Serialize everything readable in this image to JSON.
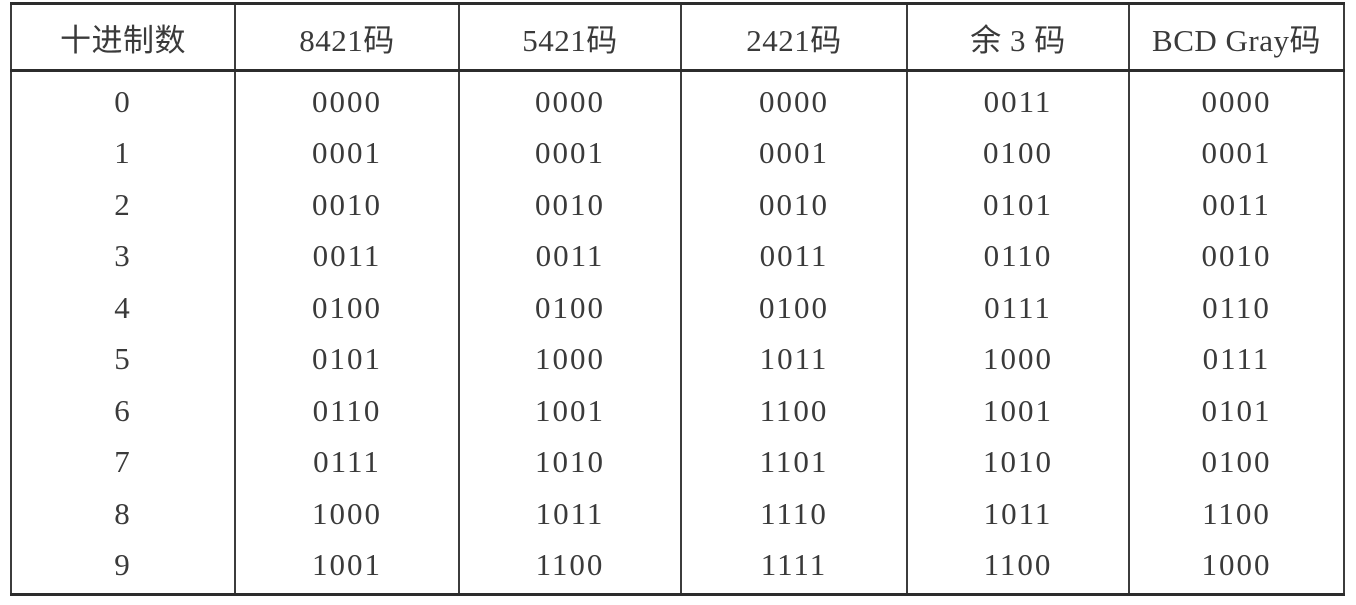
{
  "table": {
    "headers": [
      "十进制数",
      "8421码",
      "5421码",
      "2421码",
      "余 3 码",
      "BCD Gray码"
    ],
    "rows": [
      [
        "0",
        "0000",
        "0000",
        "0000",
        "0011",
        "0000"
      ],
      [
        "1",
        "0001",
        "0001",
        "0001",
        "0100",
        "0001"
      ],
      [
        "2",
        "0010",
        "0010",
        "0010",
        "0101",
        "0011"
      ],
      [
        "3",
        "0011",
        "0011",
        "0011",
        "0110",
        "0010"
      ],
      [
        "4",
        "0100",
        "0100",
        "0100",
        "0111",
        "0110"
      ],
      [
        "5",
        "0101",
        "1000",
        "1011",
        "1000",
        "0111"
      ],
      [
        "6",
        "0110",
        "1001",
        "1100",
        "1001",
        "0101"
      ],
      [
        "7",
        "0111",
        "1010",
        "1101",
        "1010",
        "0100"
      ],
      [
        "8",
        "1000",
        "1011",
        "1110",
        "1011",
        "1100"
      ],
      [
        "9",
        "1001",
        "1100",
        "1111",
        "1100",
        "1000"
      ]
    ]
  }
}
